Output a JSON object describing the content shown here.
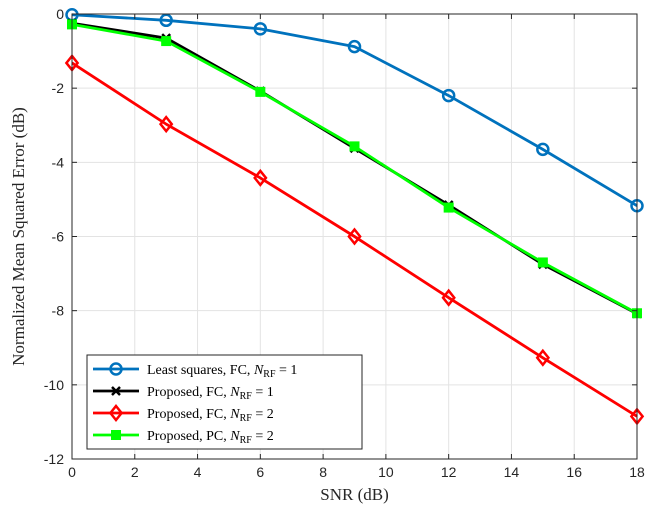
{
  "chart_data": {
    "type": "line",
    "xlabel": "SNR (dB)",
    "ylabel": "Normalized Mean Squared Error (dB)",
    "x": [
      0,
      3,
      6,
      9,
      12,
      15,
      18
    ],
    "xlim": [
      0,
      18
    ],
    "ylim": [
      -12,
      0
    ],
    "xticks": [
      "0",
      "2",
      "4",
      "6",
      "8",
      "10",
      "12",
      "14",
      "16",
      "18"
    ],
    "yticks": [
      "0",
      "-2",
      "-4",
      "-6",
      "-8",
      "-10",
      "-12"
    ],
    "grid": true,
    "legend_position": "bottom-left",
    "series": [
      {
        "label_prefix": "Least squares, FC, ",
        "label_var": "N",
        "label_sub": "RF",
        "label_suffix": " = 1",
        "color": "#0072BD",
        "marker": "circle",
        "values": [
          -0.02,
          -0.17,
          -0.4,
          -0.88,
          -2.2,
          -3.65,
          -5.17
        ]
      },
      {
        "label_prefix": "Proposed, FC, ",
        "label_var": "N",
        "label_sub": "RF",
        "label_suffix": " = 1",
        "color": "#000000",
        "marker": "x",
        "values": [
          -0.25,
          -0.65,
          -2.08,
          -3.62,
          -5.15,
          -6.75,
          -8.08
        ]
      },
      {
        "label_prefix": "Proposed, FC, ",
        "label_var": "N",
        "label_sub": "RF",
        "label_suffix": " = 2",
        "color": "#FF0000",
        "marker": "diamond",
        "values": [
          -1.32,
          -2.97,
          -4.42,
          -6.0,
          -7.65,
          -9.27,
          -10.85
        ]
      },
      {
        "label_prefix": "Proposed, PC, ",
        "label_var": "N",
        "label_sub": "RF",
        "label_suffix": " = 2",
        "color": "#00FF00",
        "marker": "square",
        "values": [
          -0.28,
          -0.73,
          -2.1,
          -3.57,
          -5.22,
          -6.7,
          -8.07
        ]
      }
    ]
  }
}
